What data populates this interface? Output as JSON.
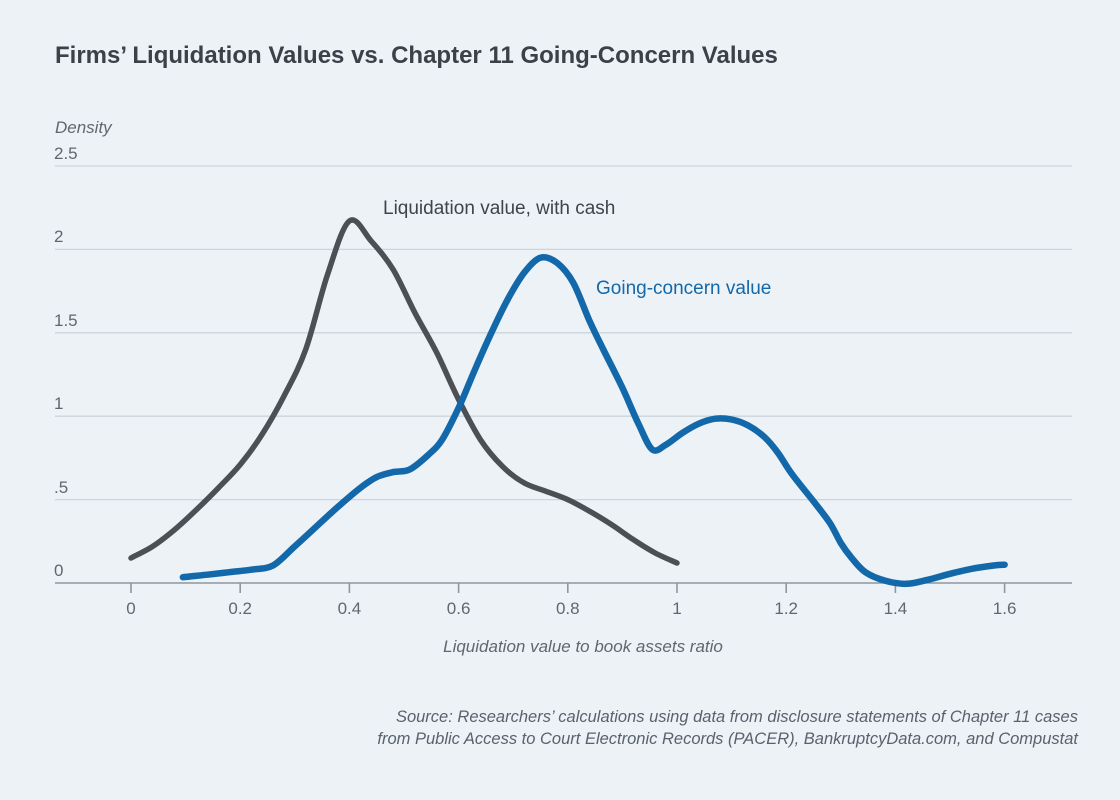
{
  "header": {
    "title": "Firms’ Liquidation Values vs. Chapter 11 Going-Concern Values"
  },
  "chart": {
    "y_axis_label": "Density",
    "x_axis_label": "Liquidation value to book assets ratio",
    "y_ticks": [
      {
        "label": "2.5",
        "value": 2.5
      },
      {
        "label": "2",
        "value": 2
      },
      {
        "label": "1.5",
        "value": 1.5
      },
      {
        "label": "1",
        "value": 1
      },
      {
        "label": ".5",
        "value": 0.5
      },
      {
        "label": "0",
        "value": 0
      }
    ],
    "x_ticks": [
      {
        "label": "0",
        "value": 0
      },
      {
        "label": "0.2",
        "value": 0.2
      },
      {
        "label": "0.4",
        "value": 0.4
      },
      {
        "label": "0.6",
        "value": 0.6
      },
      {
        "label": "0.8",
        "value": 0.8
      },
      {
        "label": "1",
        "value": 1
      },
      {
        "label": "1.2",
        "value": 1.2
      },
      {
        "label": "1.4",
        "value": 1.4
      },
      {
        "label": "1.6",
        "value": 1.6
      }
    ],
    "series_label_gray": "Liquidation value, with cash",
    "series_label_blue": "Going-concern value"
  },
  "source": {
    "line1": "Source: Researchers’ calculations using data from disclosure statements of Chapter 11 cases",
    "line2": "from Public Access to Court Electronic Records (PACER), BankruptcyData.com, and Compustat"
  },
  "colors": {
    "background": "#edf2f7",
    "grid_line": "#cdd4da",
    "axis_line": "#8e979e",
    "tick_text": "#5f676f",
    "title_text": "#3b4148",
    "gray_curve": "#4c4f54",
    "blue_curve": "#1368aa",
    "source_text": "#59626c"
  },
  "chart_data": {
    "type": "line",
    "title": "Firms’ Liquidation Values vs. Chapter 11 Going-Concern Values",
    "xlabel": "Liquidation value to book assets ratio",
    "ylabel": "Density",
    "xlim": [
      -0.14,
      1.72
    ],
    "ylim": [
      0,
      2.5
    ],
    "grid": "horizontal-only",
    "legend": "inline-labels",
    "series": [
      {
        "name": "Liquidation value, with cash",
        "color": "#4c4f54",
        "stroke_width": 5.5,
        "points": [
          [
            0.0,
            0.15
          ],
          [
            0.04,
            0.22
          ],
          [
            0.08,
            0.32
          ],
          [
            0.12,
            0.44
          ],
          [
            0.16,
            0.57
          ],
          [
            0.2,
            0.71
          ],
          [
            0.24,
            0.89
          ],
          [
            0.28,
            1.12
          ],
          [
            0.32,
            1.4
          ],
          [
            0.36,
            1.85
          ],
          [
            0.4,
            2.17
          ],
          [
            0.44,
            2.05
          ],
          [
            0.48,
            1.88
          ],
          [
            0.52,
            1.62
          ],
          [
            0.56,
            1.38
          ],
          [
            0.6,
            1.1
          ],
          [
            0.64,
            0.86
          ],
          [
            0.68,
            0.7
          ],
          [
            0.72,
            0.6
          ],
          [
            0.76,
            0.55
          ],
          [
            0.8,
            0.5
          ],
          [
            0.84,
            0.43
          ],
          [
            0.88,
            0.35
          ],
          [
            0.92,
            0.26
          ],
          [
            0.96,
            0.18
          ],
          [
            1.0,
            0.12
          ]
        ]
      },
      {
        "name": "Going-concern value",
        "color": "#1368aa",
        "stroke_width": 6.5,
        "points": [
          [
            0.095,
            0.035
          ],
          [
            0.14,
            0.05
          ],
          [
            0.18,
            0.065
          ],
          [
            0.22,
            0.08
          ],
          [
            0.26,
            0.105
          ],
          [
            0.3,
            0.22
          ],
          [
            0.34,
            0.34
          ],
          [
            0.38,
            0.46
          ],
          [
            0.42,
            0.57
          ],
          [
            0.45,
            0.635
          ],
          [
            0.48,
            0.665
          ],
          [
            0.51,
            0.68
          ],
          [
            0.545,
            0.77
          ],
          [
            0.57,
            0.86
          ],
          [
            0.6,
            1.05
          ],
          [
            0.63,
            1.28
          ],
          [
            0.66,
            1.5
          ],
          [
            0.69,
            1.7
          ],
          [
            0.72,
            1.86
          ],
          [
            0.75,
            1.95
          ],
          [
            0.78,
            1.92
          ],
          [
            0.81,
            1.8
          ],
          [
            0.84,
            1.57
          ],
          [
            0.865,
            1.4
          ],
          [
            0.9,
            1.17
          ],
          [
            0.93,
            0.95
          ],
          [
            0.955,
            0.8
          ],
          [
            0.98,
            0.83
          ],
          [
            1.01,
            0.9
          ],
          [
            1.04,
            0.955
          ],
          [
            1.07,
            0.985
          ],
          [
            1.1,
            0.98
          ],
          [
            1.13,
            0.945
          ],
          [
            1.16,
            0.875
          ],
          [
            1.185,
            0.78
          ],
          [
            1.21,
            0.655
          ],
          [
            1.25,
            0.49
          ],
          [
            1.28,
            0.36
          ],
          [
            1.3,
            0.24
          ],
          [
            1.32,
            0.15
          ],
          [
            1.345,
            0.065
          ],
          [
            1.38,
            0.015
          ],
          [
            1.42,
            -0.005
          ],
          [
            1.46,
            0.02
          ],
          [
            1.5,
            0.055
          ],
          [
            1.54,
            0.085
          ],
          [
            1.58,
            0.105
          ],
          [
            1.6,
            0.11
          ]
        ]
      }
    ]
  }
}
